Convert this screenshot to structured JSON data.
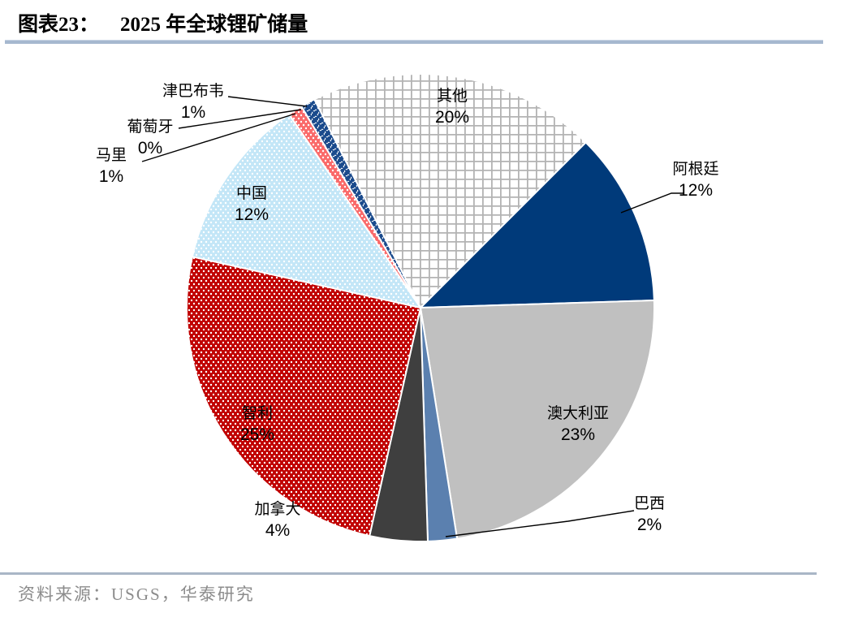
{
  "title": {
    "prefix": "图表23：",
    "text": "2025 年全球锂矿储量"
  },
  "source": {
    "label": "资料来源：USGS，华泰研究"
  },
  "chart_data": {
    "type": "pie",
    "title": "2025 年全球锂矿储量",
    "unit": "percent-of-global-lithium-reserves",
    "start_angle_deg": 45,
    "direction": "clockwise",
    "legend": "none",
    "slices": [
      {
        "key": "argentina",
        "name": "阿根廷",
        "value": 12,
        "pct_label": "12%",
        "color": "#003a7a",
        "pattern": "solid"
      },
      {
        "key": "australia",
        "name": "澳大利亚",
        "value": 23,
        "pct_label": "23%",
        "color": "#c0c0c0",
        "pattern": "solid"
      },
      {
        "key": "brazil",
        "name": "巴西",
        "value": 2,
        "pct_label": "2%",
        "color": "#5b80af",
        "pattern": "solid"
      },
      {
        "key": "canada",
        "name": "加拿大",
        "value": 4,
        "pct_label": "4%",
        "color": "#3f3f3f",
        "pattern": "solid"
      },
      {
        "key": "chile",
        "name": "智利",
        "value": 25,
        "pct_label": "25%",
        "color": "#c00000",
        "pattern": "dots"
      },
      {
        "key": "china",
        "name": "中国",
        "value": 12,
        "pct_label": "12%",
        "color": "#c3e6f7",
        "pattern": "dots"
      },
      {
        "key": "mali",
        "name": "马里",
        "value": 1,
        "pct_label": "1%",
        "color": "#fa6a6a",
        "pattern": "dots"
      },
      {
        "key": "portugal",
        "name": "葡萄牙",
        "value": 0,
        "pct_label": "0%",
        "color": "#ffffff",
        "pattern": "solid"
      },
      {
        "key": "zimbabwe",
        "name": "津巴布韦",
        "value": 1,
        "pct_label": "1%",
        "color": "#ffffff",
        "pattern": "crosshatch",
        "pattern_color": "#1a4a8c"
      },
      {
        "key": "other",
        "name": "其他",
        "value": 20,
        "pct_label": "20%",
        "color": "#ffffff",
        "pattern": "grid",
        "pattern_color": "#b3b3b3"
      }
    ]
  }
}
